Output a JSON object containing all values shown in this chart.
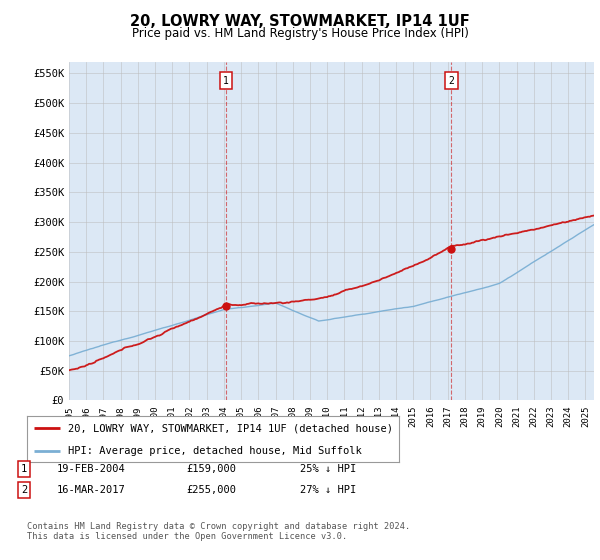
{
  "title": "20, LOWRY WAY, STOWMARKET, IP14 1UF",
  "subtitle": "Price paid vs. HM Land Registry's House Price Index (HPI)",
  "bg_color": "#dce8f5",
  "fig_color": "#ffffff",
  "grid_color": "#bbbbbb",
  "hpi_color": "#7bafd4",
  "price_color": "#cc1111",
  "sale1_year": 2004.13,
  "sale1_price": 159000,
  "sale2_year": 2017.21,
  "sale2_price": 255000,
  "annotation1": {
    "label": "1",
    "date": "19-FEB-2004",
    "price": "£159,000",
    "hpi": "25% ↓ HPI"
  },
  "annotation2": {
    "label": "2",
    "date": "16-MAR-2017",
    "price": "£255,000",
    "hpi": "27% ↓ HPI"
  },
  "legend_line1": "20, LOWRY WAY, STOWMARKET, IP14 1UF (detached house)",
  "legend_line2": "HPI: Average price, detached house, Mid Suffolk",
  "footer": "Contains HM Land Registry data © Crown copyright and database right 2024.\nThis data is licensed under the Open Government Licence v3.0.",
  "yticks": [
    0,
    50000,
    100000,
    150000,
    200000,
    250000,
    300000,
    350000,
    400000,
    450000,
    500000,
    550000
  ],
  "ytick_labels": [
    "£0",
    "£50K",
    "£100K",
    "£150K",
    "£200K",
    "£250K",
    "£300K",
    "£350K",
    "£400K",
    "£450K",
    "£500K",
    "£550K"
  ]
}
